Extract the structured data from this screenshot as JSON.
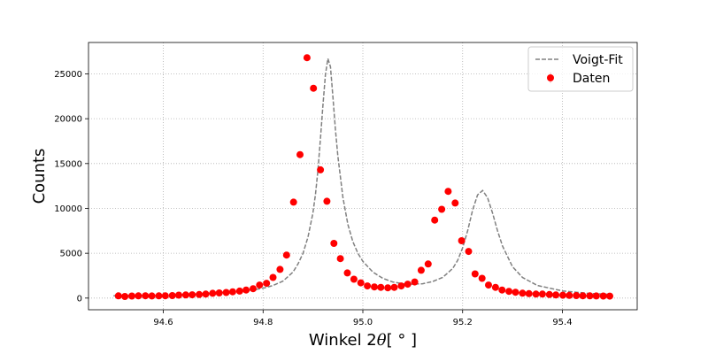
{
  "chart_data": {
    "type": "scatter",
    "title": "",
    "xlabel_prefix": "Winkel 2",
    "xlabel_theta": "θ",
    "xlabel_suffix": "[ ° ]",
    "ylabel": "Counts",
    "xlim": [
      94.45,
      95.55
    ],
    "ylim": [
      -1300,
      28500
    ],
    "xticks": [
      94.6,
      94.8,
      95.0,
      95.2,
      95.4
    ],
    "xtick_labels": [
      "94.6",
      "94.8",
      "95.0",
      "95.2",
      "95.4"
    ],
    "yticks": [
      0,
      5000,
      10000,
      15000,
      20000,
      25000
    ],
    "ytick_labels": [
      "0",
      "5000",
      "10000",
      "15000",
      "20000",
      "25000"
    ],
    "grid": true,
    "legend_position": "top-right",
    "colors": {
      "fit": "#808080",
      "data": "#ff0000",
      "grid": "#b0b0b0"
    },
    "series": [
      {
        "name": "Voigt-Fit",
        "style": "dashed-line",
        "x": [
          94.5,
          94.55,
          94.6,
          94.65,
          94.7,
          94.75,
          94.78,
          94.8,
          94.82,
          94.84,
          94.86,
          94.87,
          94.88,
          94.89,
          94.9,
          94.905,
          94.91,
          94.915,
          94.92,
          94.925,
          94.93,
          94.935,
          94.94,
          94.945,
          94.95,
          94.96,
          94.97,
          94.98,
          94.99,
          95.0,
          95.02,
          95.04,
          95.06,
          95.08,
          95.1,
          95.12,
          95.14,
          95.16,
          95.18,
          95.19,
          95.2,
          95.21,
          95.22,
          95.23,
          95.24,
          95.25,
          95.26,
          95.27,
          95.28,
          95.3,
          95.32,
          95.35,
          95.4,
          95.45,
          95.5
        ],
        "y": [
          250,
          290,
          340,
          420,
          540,
          740,
          930,
          1100,
          1400,
          1900,
          2900,
          3800,
          5000,
          6800,
          9500,
          11600,
          14300,
          17800,
          21500,
          24900,
          26700,
          25800,
          22400,
          18800,
          15800,
          11200,
          8200,
          6300,
          5000,
          4100,
          2900,
          2200,
          1800,
          1600,
          1550,
          1600,
          1850,
          2300,
          3300,
          4200,
          5600,
          7500,
          9800,
          11500,
          12000,
          11200,
          9500,
          7500,
          5800,
          3500,
          2300,
          1400,
          800,
          540,
          400
        ]
      },
      {
        "name": "Daten",
        "style": "markers",
        "x": [
          94.51,
          94.523,
          94.537,
          94.55,
          94.564,
          94.577,
          94.591,
          94.604,
          94.618,
          94.631,
          94.645,
          94.658,
          94.672,
          94.685,
          94.699,
          94.712,
          94.726,
          94.739,
          94.753,
          94.766,
          94.78,
          94.793,
          94.807,
          94.82,
          94.834,
          94.847,
          94.861,
          94.874,
          94.888,
          94.901,
          94.915,
          94.928,
          94.942,
          94.955,
          94.969,
          94.982,
          94.996,
          95.009,
          95.023,
          95.036,
          95.05,
          95.063,
          95.077,
          95.09,
          95.104,
          95.117,
          95.131,
          95.144,
          95.158,
          95.171,
          95.185,
          95.198,
          95.212,
          95.225,
          95.239,
          95.252,
          95.266,
          95.279,
          95.293,
          95.306,
          95.32,
          95.333,
          95.347,
          95.36,
          95.374,
          95.387,
          95.401,
          95.414,
          95.428,
          95.441,
          95.455,
          95.468,
          95.482,
          95.495
        ],
        "y": [
          250,
          180,
          230,
          250,
          260,
          240,
          250,
          260,
          280,
          330,
          350,
          370,
          400,
          450,
          540,
          570,
          620,
          700,
          780,
          900,
          1050,
          1450,
          1650,
          2300,
          3200,
          4800,
          10700,
          16000,
          26800,
          23400,
          14300,
          10800,
          6100,
          4400,
          2800,
          2100,
          1700,
          1350,
          1250,
          1200,
          1150,
          1200,
          1350,
          1550,
          1800,
          3100,
          3800,
          8700,
          9900,
          11900,
          10600,
          6400,
          5200,
          2700,
          2200,
          1450,
          1200,
          900,
          750,
          650,
          550,
          500,
          450,
          450,
          400,
          350,
          320,
          300,
          280,
          260,
          250,
          240,
          230,
          220
        ]
      }
    ]
  }
}
